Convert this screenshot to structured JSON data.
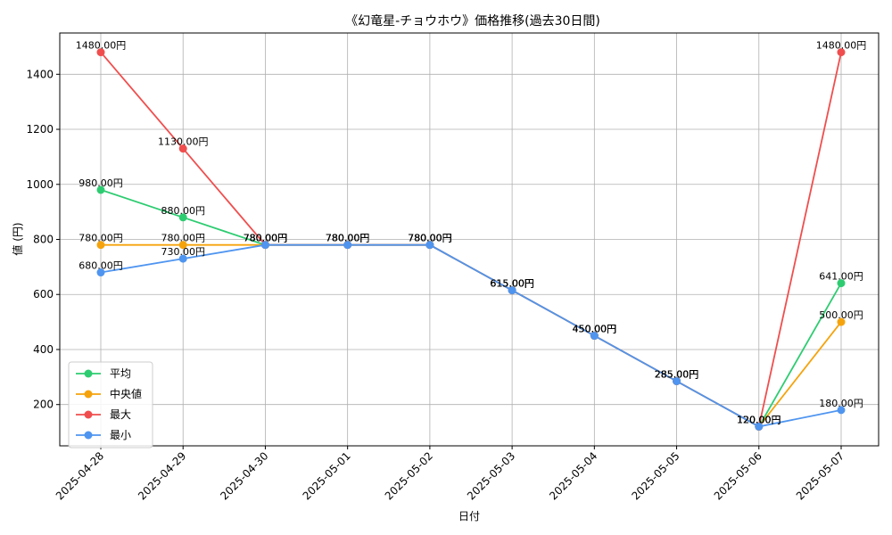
{
  "chart_data": {
    "type": "line",
    "title": "《幻竜星-チョウホウ》価格推移(過去30日間)",
    "xlabel": "日付",
    "ylabel": "値 (円)",
    "categories": [
      "2025-04-28",
      "2025-04-29",
      "2025-04-30",
      "2025-05-01",
      "2025-05-02",
      "2025-05-03",
      "2025-05-04",
      "2025-05-05",
      "2025-05-06",
      "2025-05-07"
    ],
    "ylim": [
      50,
      1550
    ],
    "yticks": [
      200,
      400,
      600,
      800,
      1000,
      1200,
      1400
    ],
    "grid": true,
    "legend_position": "lower-left",
    "series": [
      {
        "name": "平均",
        "color": "#2ecc71",
        "values": [
          980,
          880,
          780,
          780,
          780,
          615,
          450,
          285,
          120,
          641
        ],
        "labels": [
          "980.00円",
          "880.00円",
          "780.00円",
          "780.00円",
          "780.00円",
          "615.00円",
          "450.00円",
          "285.00円",
          "120.00円",
          "641.00円"
        ]
      },
      {
        "name": "中央値",
        "color": "#f5a30c",
        "values": [
          780,
          780,
          780,
          780,
          780,
          615,
          450,
          285,
          120,
          500
        ],
        "labels": [
          "780.00円",
          "780.00円",
          "780.00円",
          "780.00円",
          "780.00円",
          "615.00円",
          "450.00円",
          "285.00円",
          "120.00円",
          "500.00円"
        ]
      },
      {
        "name": "最大",
        "color": "#f04e4e",
        "values": [
          1480,
          1130,
          780,
          780,
          780,
          615,
          450,
          285,
          120,
          1480
        ],
        "labels": [
          "1480.00円",
          "1130.00円",
          "780.00円",
          "780.00円",
          "780.00円",
          "615.00円",
          "450.00円",
          "285.00円",
          "120.00円",
          "1480.00円"
        ]
      },
      {
        "name": "最小",
        "color": "#4f95f0",
        "values": [
          680,
          730,
          780,
          780,
          780,
          615,
          450,
          285,
          120,
          180
        ],
        "labels": [
          "680.00円",
          "730.00円",
          "780.00円",
          "780.00円",
          "780.00円",
          "615.00円",
          "450.00円",
          "285.00円",
          "120.00円",
          "180.00円"
        ]
      }
    ]
  }
}
